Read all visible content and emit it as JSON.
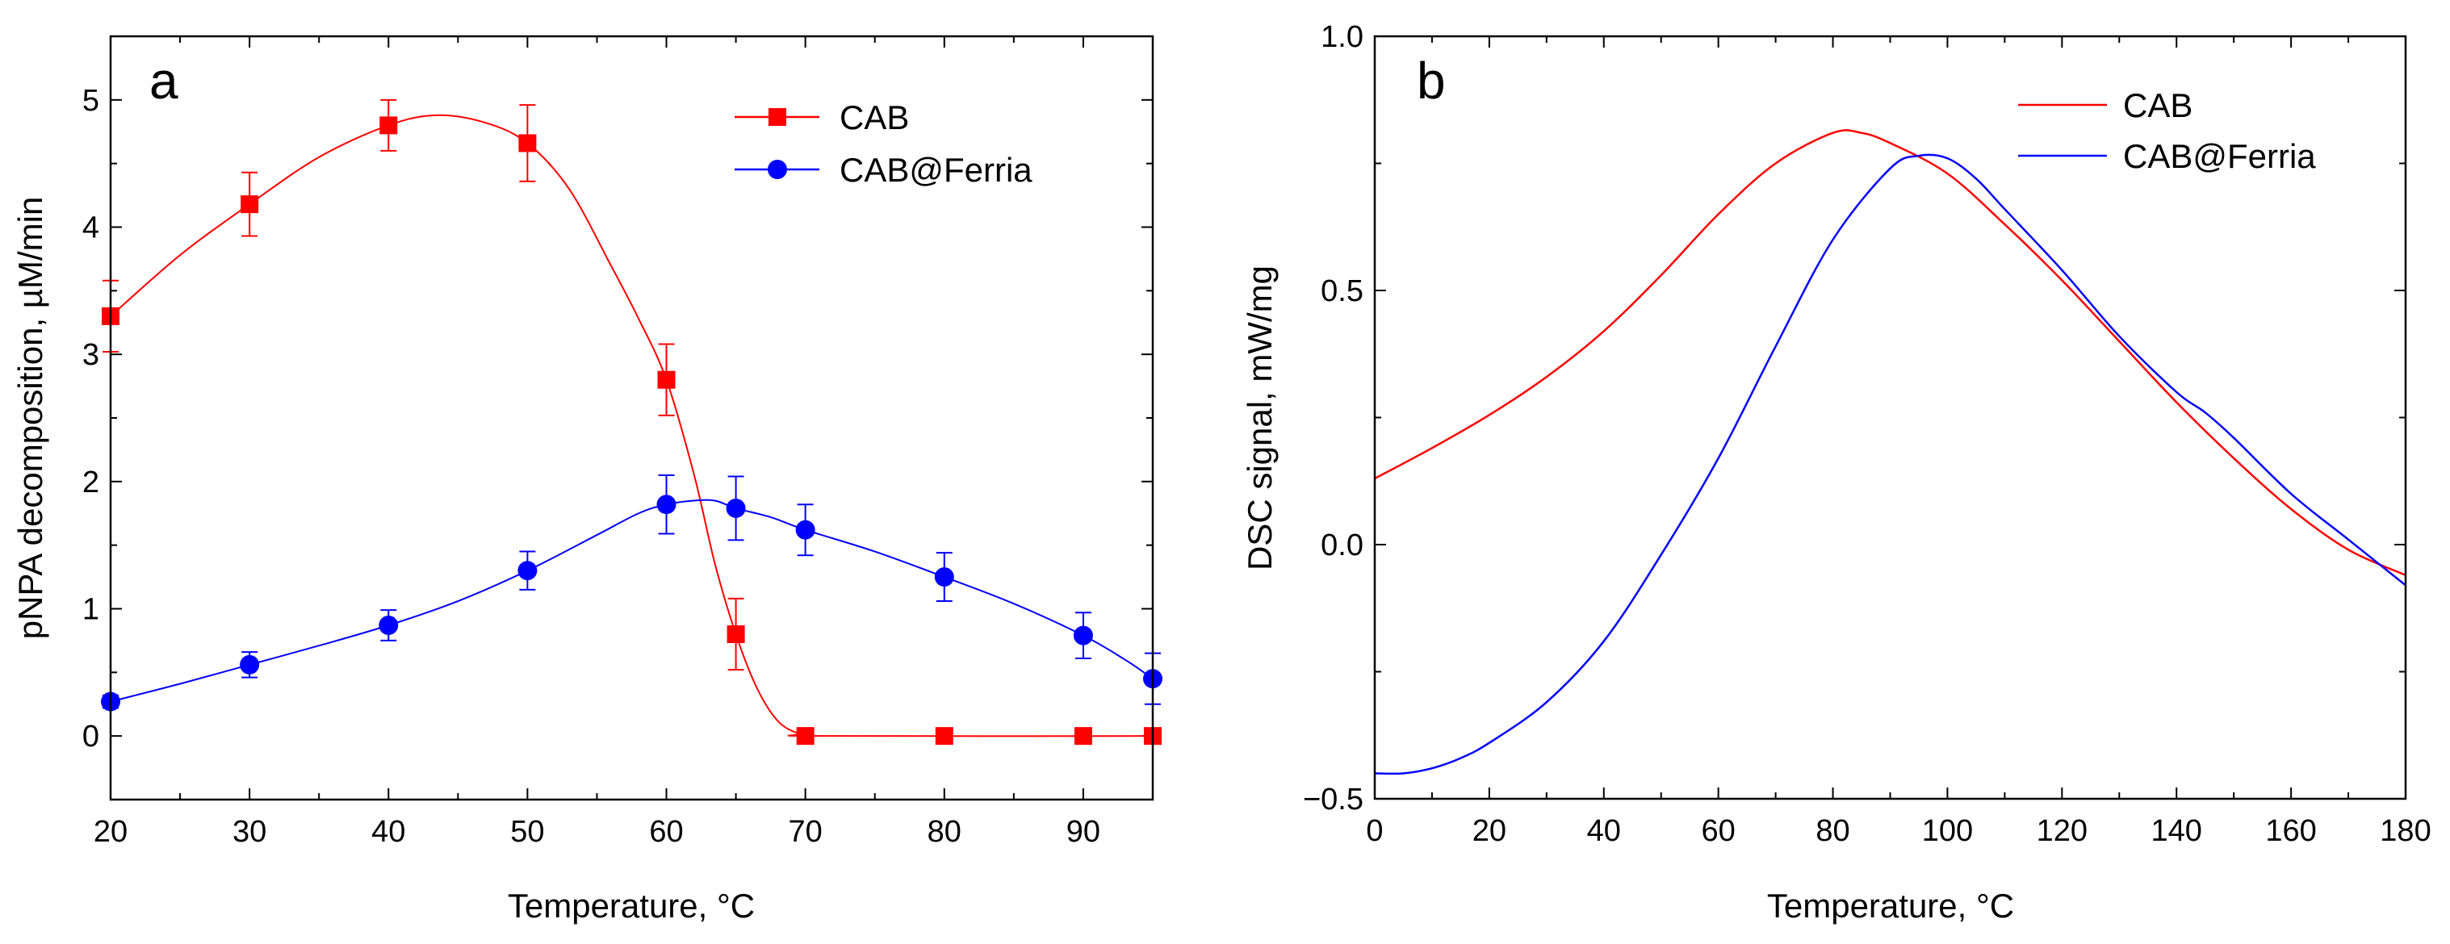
{
  "chart_data": [
    {
      "panel": "a",
      "type": "line",
      "xlabel": "Temperature, °C",
      "ylabel": "pNPA decomposition, µM/min",
      "xlim": [
        20,
        95
      ],
      "ylim": [
        -0.5,
        5.5
      ],
      "xticks": [
        20,
        30,
        40,
        50,
        60,
        70,
        80,
        90
      ],
      "yticks": [
        0,
        1,
        2,
        3,
        4,
        5
      ],
      "legend_position": "top-right",
      "series": [
        {
          "name": "CAB",
          "color": "#ff0000",
          "marker": "square",
          "x": [
            20,
            30,
            40,
            50,
            60,
            65,
            70,
            80,
            90,
            95
          ],
          "y": [
            3.3,
            4.18,
            4.8,
            4.66,
            2.8,
            0.8,
            0,
            0,
            0,
            0
          ],
          "error": [
            0.28,
            0.25,
            0.2,
            0.3,
            0.28,
            0.28,
            0,
            0,
            0,
            0
          ],
          "fit_curve": [
            [
              20,
              3.3
            ],
            [
              25,
              3.78
            ],
            [
              30,
              4.18
            ],
            [
              35,
              4.55
            ],
            [
              40,
              4.8
            ],
            [
              43.5,
              4.88
            ],
            [
              47,
              4.82
            ],
            [
              50,
              4.66
            ],
            [
              53,
              4.3
            ],
            [
              56,
              3.7
            ],
            [
              58,
              3.28
            ],
            [
              60,
              2.8
            ],
            [
              62,
              2.05
            ],
            [
              63.5,
              1.35
            ],
            [
              65,
              0.8
            ],
            [
              66.5,
              0.38
            ],
            [
              68,
              0.12
            ],
            [
              69.5,
              0.02
            ],
            [
              71,
              0
            ],
            [
              95,
              0
            ]
          ]
        },
        {
          "name": "CAB@Ferria",
          "color": "#0000ff",
          "marker": "circle",
          "x": [
            20,
            30,
            40,
            50,
            60,
            65,
            70,
            80,
            90,
            95
          ],
          "y": [
            0.27,
            0.56,
            0.87,
            1.3,
            1.82,
            1.79,
            1.62,
            1.25,
            0.79,
            0.45
          ],
          "error": [
            0.05,
            0.1,
            0.12,
            0.15,
            0.23,
            0.25,
            0.2,
            0.19,
            0.18,
            0.2
          ],
          "fit_curve": [
            [
              20,
              0.27
            ],
            [
              25,
              0.41
            ],
            [
              30,
              0.56
            ],
            [
              35,
              0.71
            ],
            [
              40,
              0.87
            ],
            [
              45,
              1.06
            ],
            [
              50,
              1.3
            ],
            [
              55,
              1.58
            ],
            [
              58,
              1.75
            ],
            [
              60,
              1.82
            ],
            [
              62,
              1.85
            ],
            [
              63.5,
              1.85
            ],
            [
              65,
              1.79
            ],
            [
              67.5,
              1.72
            ],
            [
              70,
              1.62
            ],
            [
              75,
              1.45
            ],
            [
              80,
              1.25
            ],
            [
              85,
              1.04
            ],
            [
              90,
              0.79
            ],
            [
              93,
              0.6
            ],
            [
              95,
              0.45
            ]
          ]
        }
      ]
    },
    {
      "panel": "b",
      "type": "line",
      "xlabel": "Temperature, °C",
      "ylabel": "DSC signal, mW/mg",
      "xlim": [
        0,
        180
      ],
      "ylim": [
        -0.5,
        1.0
      ],
      "xticks": [
        0,
        20,
        40,
        60,
        80,
        100,
        120,
        140,
        160,
        180
      ],
      "yticks": [
        -0.5,
        0.0,
        0.5,
        1.0
      ],
      "ytick_labels": [
        "−0.5",
        "0.0",
        "0.5",
        "1.0"
      ],
      "legend_position": "top-right",
      "series": [
        {
          "name": "CAB",
          "color": "#ff0000",
          "x": [
            0,
            10,
            20,
            30,
            40,
            50,
            60,
            70,
            80,
            85,
            90,
            100,
            110,
            120,
            130,
            140,
            150,
            160,
            170,
            180
          ],
          "y": [
            0.13,
            0.19,
            0.255,
            0.33,
            0.42,
            0.53,
            0.65,
            0.75,
            0.81,
            0.81,
            0.79,
            0.73,
            0.63,
            0.52,
            0.4,
            0.28,
            0.17,
            0.07,
            -0.01,
            -0.06
          ]
        },
        {
          "name": "CAB@Ferria",
          "color": "#0000ff",
          "x": [
            0,
            5,
            10,
            15,
            20,
            30,
            40,
            50,
            60,
            70,
            80,
            90,
            95,
            100,
            105,
            110,
            120,
            130,
            140,
            145,
            150,
            160,
            170,
            180
          ],
          "y": [
            -0.45,
            -0.45,
            -0.44,
            -0.42,
            -0.39,
            -0.31,
            -0.19,
            -0.02,
            0.17,
            0.39,
            0.6,
            0.74,
            0.765,
            0.76,
            0.72,
            0.66,
            0.54,
            0.41,
            0.3,
            0.26,
            0.21,
            0.1,
            0.01,
            -0.08
          ]
        }
      ]
    }
  ]
}
